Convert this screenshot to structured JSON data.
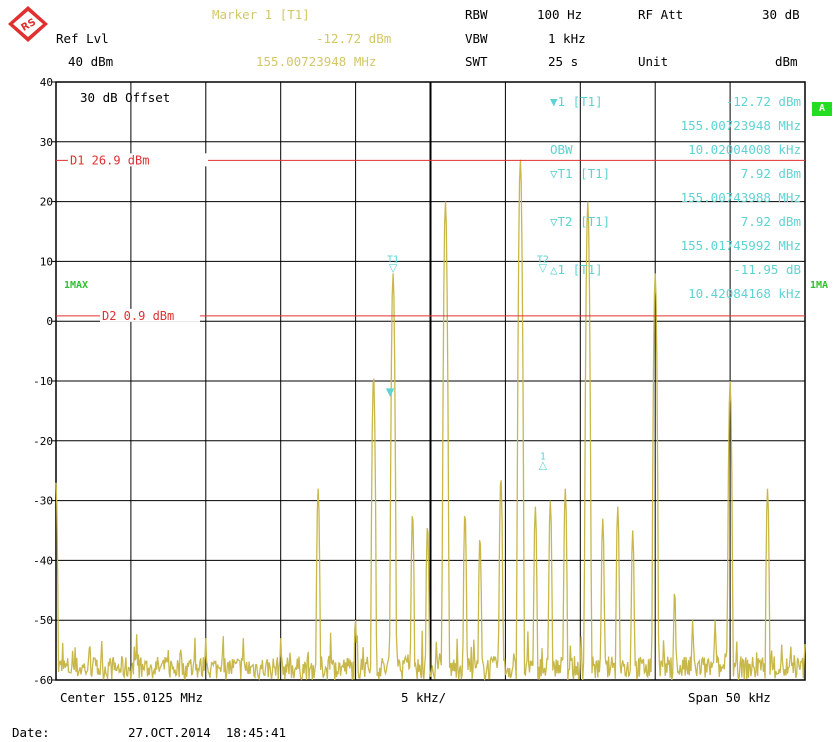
{
  "header": {
    "logo_text": "RS",
    "ref_lvl_label": "Ref Lvl",
    "ref_lvl_value": "40 dBm",
    "marker_title": "Marker 1 [T1]",
    "marker_level": "-12.72 dBm",
    "marker_freq": "155.00723948 MHz",
    "rbw_label": "RBW",
    "rbw_value": "100 Hz",
    "vbw_label": "VBW",
    "vbw_value": "1 kHz",
    "swt_label": "SWT",
    "swt_value": "25 s",
    "rfatt_label": "RF Att",
    "rfatt_value": "30 dB",
    "unit_label": "Unit",
    "unit_value": "dBm"
  },
  "screen": {
    "offset_text": "30 dB Offset",
    "trace_mode_left": "1MAX",
    "trace_mode_right": "1MA",
    "badge_label": "A",
    "footer_center": "Center 155.0125 MHz",
    "footer_div": "5 kHz/",
    "footer_span": "Span 50 kHz",
    "date_label": "Date:",
    "date_value": "27.OCT.2014  18:45:41"
  },
  "markers_table": [
    {
      "sym": "▼",
      "name": "1 [T1]",
      "value": "-12.72 dBm",
      "sub": "155.00723948 MHz"
    },
    {
      "sym": "",
      "name": "OBW",
      "value": "10.02004008 kHz",
      "sub": ""
    },
    {
      "sym": "▽",
      "name": "T1 [T1]",
      "value": "7.92 dBm",
      "sub": "155.00743988 MHz"
    },
    {
      "sym": "▽",
      "name": "T2 [T1]",
      "value": "7.92 dBm",
      "sub": "155.01745992 MHz"
    },
    {
      "sym": "△",
      "name": "1 [T1]",
      "value": "-11.95 dB",
      "sub": "10.42084168 kHz"
    }
  ],
  "chart_data": {
    "type": "line",
    "xlabel": "",
    "ylabel": "",
    "xlim_khz_offset": [
      -25,
      25
    ],
    "ylim": [
      -60,
      40
    ],
    "yticks": [
      40,
      30,
      20,
      10,
      0,
      -10,
      -20,
      -30,
      -40,
      -50,
      -60
    ],
    "grid": true,
    "display_lines": [
      {
        "label": "D1",
        "text": "26.9 dBm",
        "value": 26.9
      },
      {
        "label": "D2",
        "text": "0.9 dBm",
        "value": 0.9
      }
    ],
    "peaks": [
      {
        "x_khz": -25.0,
        "y": -27
      },
      {
        "x_khz": -17.5,
        "y": -55
      },
      {
        "x_khz": -15.0,
        "y": -53
      },
      {
        "x_khz": -12.5,
        "y": -53
      },
      {
        "x_khz": -10.0,
        "y": -53
      },
      {
        "x_khz": -7.5,
        "y": -28
      },
      {
        "x_khz": -5.0,
        "y": -50
      },
      {
        "x_khz": -3.8,
        "y": -9
      },
      {
        "x_khz": -2.5,
        "y": 8
      },
      {
        "x_khz": -1.2,
        "y": -32
      },
      {
        "x_khz": -0.2,
        "y": -34
      },
      {
        "x_khz": 1.0,
        "y": 20
      },
      {
        "x_khz": 2.3,
        "y": -32
      },
      {
        "x_khz": 3.3,
        "y": -36
      },
      {
        "x_khz": 4.7,
        "y": -26
      },
      {
        "x_khz": 6.0,
        "y": 27
      },
      {
        "x_khz": 7.0,
        "y": -31
      },
      {
        "x_khz": 8.0,
        "y": -30
      },
      {
        "x_khz": 9.0,
        "y": -28
      },
      {
        "x_khz": 10.5,
        "y": 20
      },
      {
        "x_khz": 11.5,
        "y": -33
      },
      {
        "x_khz": 12.5,
        "y": -31
      },
      {
        "x_khz": 13.5,
        "y": -35
      },
      {
        "x_khz": 15.0,
        "y": 8
      },
      {
        "x_khz": 16.3,
        "y": -45
      },
      {
        "x_khz": 17.5,
        "y": -50
      },
      {
        "x_khz": 19.0,
        "y": -50
      },
      {
        "x_khz": 20.0,
        "y": -10
      },
      {
        "x_khz": 22.5,
        "y": -28
      },
      {
        "x_khz": 25.0,
        "y": -54
      }
    ],
    "noise_floor_dbm": -58
  }
}
